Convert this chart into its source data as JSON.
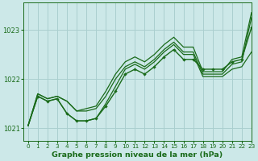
{
  "title": "Graphe pression niveau de la mer (hPa)",
  "bg_color": "#cce8e8",
  "grid_color": "#aacfcf",
  "line_color": "#1a6b1a",
  "xlim": [
    -0.5,
    23
  ],
  "ylim": [
    1020.75,
    1023.55
  ],
  "yticks": [
    1021,
    1022,
    1023
  ],
  "xticks": [
    0,
    1,
    2,
    3,
    4,
    5,
    6,
    7,
    8,
    9,
    10,
    11,
    12,
    13,
    14,
    15,
    16,
    17,
    18,
    19,
    20,
    21,
    22,
    23
  ],
  "series": [
    {
      "y": [
        1021.05,
        1021.65,
        1021.55,
        1021.6,
        1021.3,
        1021.15,
        1021.15,
        1021.2,
        1021.45,
        1021.75,
        1022.1,
        1022.2,
        1022.1,
        1022.25,
        1022.45,
        1022.6,
        1022.4,
        1022.4,
        1022.2,
        1022.2,
        1022.2,
        1022.35,
        1022.4,
        1023.05
      ],
      "markers": true,
      "lw": 1.0
    },
    {
      "y": [
        1021.05,
        1021.65,
        1021.55,
        1021.6,
        1021.3,
        1021.15,
        1021.15,
        1021.2,
        1021.5,
        1021.85,
        1022.2,
        1022.3,
        1022.2,
        1022.35,
        1022.55,
        1022.7,
        1022.5,
        1022.5,
        1022.05,
        1022.05,
        1022.05,
        1022.2,
        1022.25,
        1022.55
      ],
      "markers": false,
      "lw": 0.9
    },
    {
      "y": [
        1021.05,
        1021.7,
        1021.6,
        1021.65,
        1021.55,
        1021.35,
        1021.35,
        1021.4,
        1021.65,
        1022.0,
        1022.25,
        1022.35,
        1022.25,
        1022.4,
        1022.6,
        1022.75,
        1022.55,
        1022.55,
        1022.1,
        1022.1,
        1022.1,
        1022.3,
        1022.35,
        1023.25
      ],
      "markers": false,
      "lw": 0.9
    },
    {
      "y": [
        1021.05,
        1021.7,
        1021.6,
        1021.65,
        1021.55,
        1021.35,
        1021.4,
        1021.45,
        1021.75,
        1022.1,
        1022.35,
        1022.45,
        1022.35,
        1022.5,
        1022.7,
        1022.85,
        1022.65,
        1022.65,
        1022.15,
        1022.15,
        1022.15,
        1022.4,
        1022.45,
        1023.35
      ],
      "markers": false,
      "lw": 0.9
    }
  ],
  "marker_indices": [
    1,
    2,
    3,
    4,
    5,
    6,
    7,
    8,
    9,
    10,
    11,
    12,
    13,
    14,
    15,
    16,
    17,
    18,
    19,
    20,
    21,
    22,
    23
  ]
}
